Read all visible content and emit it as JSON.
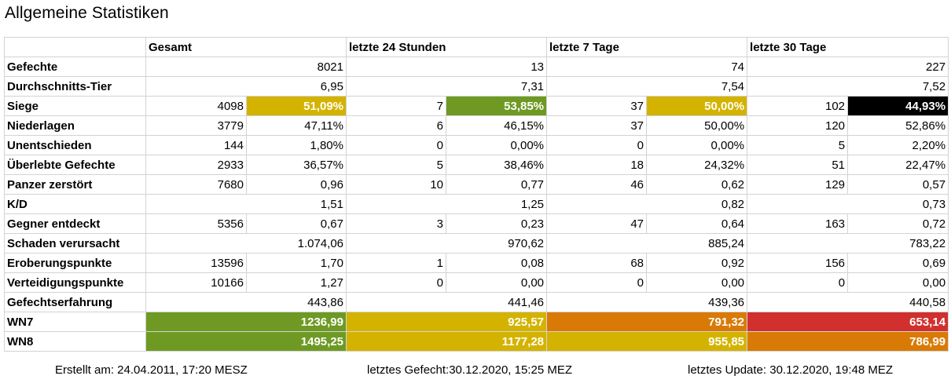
{
  "title": "Allgemeine Statistiken",
  "colors": {
    "green": "#6e9a24",
    "yellow": "#d4b300",
    "orange": "#d97a06",
    "red": "#d1302e",
    "black": "#000000",
    "border": "#d3d3d3"
  },
  "headers": [
    "Gesamt",
    "letzte 24 Stunden",
    "letzte 7 Tage",
    "letzte 30 Tage"
  ],
  "rows": {
    "gefechte": {
      "label": "Gefechte",
      "v": [
        "8021",
        "13",
        "74",
        "227"
      ]
    },
    "tier": {
      "label": "Durchschnitts-Tier",
      "v": [
        "6,95",
        "7,31",
        "7,54",
        "7,52"
      ]
    },
    "siege": {
      "label": "Siege",
      "n": [
        "4098",
        "7",
        "37",
        "102"
      ],
      "p": [
        "51,09%",
        "53,85%",
        "50,00%",
        "44,93%"
      ],
      "color": [
        "yellow",
        "green",
        "yellow",
        "black"
      ]
    },
    "niederlagen": {
      "label": "Niederlagen",
      "n": [
        "3779",
        "6",
        "37",
        "120"
      ],
      "p": [
        "47,11%",
        "46,15%",
        "50,00%",
        "52,86%"
      ]
    },
    "unentschieden": {
      "label": "Unentschieden",
      "n": [
        "144",
        "0",
        "0",
        "5"
      ],
      "p": [
        "1,80%",
        "0,00%",
        "0,00%",
        "2,20%"
      ]
    },
    "ueberlebt": {
      "label": "Überlebte Gefechte",
      "n": [
        "2933",
        "5",
        "18",
        "51"
      ],
      "p": [
        "36,57%",
        "38,46%",
        "24,32%",
        "22,47%"
      ]
    },
    "zerstoert": {
      "label": "Panzer zerstört",
      "n": [
        "7680",
        "10",
        "46",
        "129"
      ],
      "p": [
        "0,96",
        "0,77",
        "0,62",
        "0,57"
      ]
    },
    "kd": {
      "label": "K/D",
      "v": [
        "1,51",
        "1,25",
        "0,82",
        "0,73"
      ]
    },
    "entdeckt": {
      "label": "Gegner entdeckt",
      "n": [
        "5356",
        "3",
        "47",
        "163"
      ],
      "p": [
        "0,67",
        "0,23",
        "0,64",
        "0,72"
      ]
    },
    "schaden": {
      "label": "Schaden verursacht",
      "v": [
        "1.074,06",
        "970,62",
        "885,24",
        "783,22"
      ]
    },
    "eroberung": {
      "label": "Eroberungspunkte",
      "n": [
        "13596",
        "1",
        "68",
        "156"
      ],
      "p": [
        "1,70",
        "0,08",
        "0,92",
        "0,69"
      ]
    },
    "verteidigung": {
      "label": "Verteidigungspunkte",
      "n": [
        "10166",
        "0",
        "0",
        "0"
      ],
      "p": [
        "1,27",
        "0,00",
        "0,00",
        "0,00"
      ]
    },
    "erfahrung": {
      "label": "Gefechtserfahrung",
      "v": [
        "443,86",
        "441,46",
        "439,36",
        "440,58"
      ]
    },
    "wn7": {
      "label": "WN7",
      "v": [
        "1236,99",
        "925,57",
        "791,32",
        "653,14"
      ],
      "color": [
        "green",
        "yellow",
        "orange",
        "red"
      ]
    },
    "wn8": {
      "label": "WN8",
      "v": [
        "1495,25",
        "1177,28",
        "955,85",
        "786,99"
      ],
      "color": [
        "green",
        "yellow",
        "yellow",
        "orange"
      ]
    }
  },
  "footer": {
    "created": "Erstellt am: 24.04.2011, 17:20 MESZ",
    "last_battle": "letztes Gefecht:30.12.2020, 15:25 MEZ",
    "last_update": "letztes Update: 30.12.2020, 19:48 MEZ"
  }
}
